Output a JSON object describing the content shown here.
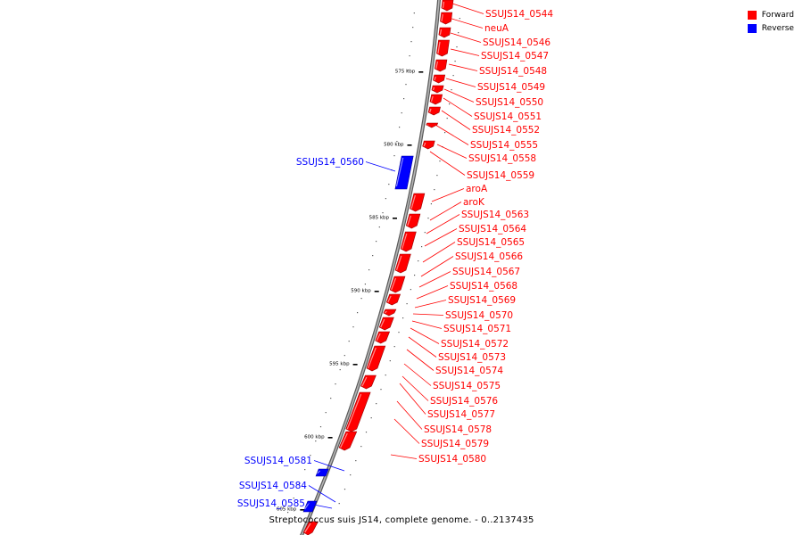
{
  "legend": [
    {
      "label": "Forward",
      "color": "#ff0000"
    },
    {
      "label": "Reverse",
      "color": "#0000ff"
    }
  ],
  "caption": "Streptococcus suis JS14, complete genome. - 0..2137435",
  "colors": {
    "forward": "#ff0000",
    "reverse": "#0000ff",
    "backbone": "#999999"
  },
  "scale": {
    "ticks": [
      {
        "label": "575 kbp",
        "kbp": 575
      },
      {
        "label": "580 kbp",
        "kbp": 580
      },
      {
        "label": "585 kbp",
        "kbp": 585
      },
      {
        "label": "590 kbp",
        "kbp": 590
      },
      {
        "label": "595 kbp",
        "kbp": 595
      },
      {
        "label": "600 kbp",
        "kbp": 600
      },
      {
        "label": "605 kbp",
        "kbp": 605
      }
    ]
  },
  "features": [
    {
      "label": "SSUJS14_0544",
      "strand": "forward"
    },
    {
      "label": "neuA",
      "strand": "forward"
    },
    {
      "label": "SSUJS14_0546",
      "strand": "forward"
    },
    {
      "label": "SSUJS14_0547",
      "strand": "forward"
    },
    {
      "label": "SSUJS14_0548",
      "strand": "forward"
    },
    {
      "label": "SSUJS14_0549",
      "strand": "forward"
    },
    {
      "label": "SSUJS14_0550",
      "strand": "forward"
    },
    {
      "label": "SSUJS14_0551",
      "strand": "forward"
    },
    {
      "label": "SSUJS14_0552",
      "strand": "forward"
    },
    {
      "label": "SSUJS14_0555",
      "strand": "forward"
    },
    {
      "label": "SSUJS14_0558",
      "strand": "forward"
    },
    {
      "label": "SSUJS14_0559",
      "strand": "forward"
    },
    {
      "label": "SSUJS14_0560",
      "strand": "reverse"
    },
    {
      "label": "aroA",
      "strand": "forward"
    },
    {
      "label": "aroK",
      "strand": "forward"
    },
    {
      "label": "SSUJS14_0563",
      "strand": "forward"
    },
    {
      "label": "SSUJS14_0564",
      "strand": "forward"
    },
    {
      "label": "SSUJS14_0565",
      "strand": "forward"
    },
    {
      "label": "SSUJS14_0566",
      "strand": "forward"
    },
    {
      "label": "SSUJS14_0567",
      "strand": "forward"
    },
    {
      "label": "SSUJS14_0568",
      "strand": "forward"
    },
    {
      "label": "SSUJS14_0569",
      "strand": "forward"
    },
    {
      "label": "SSUJS14_0570",
      "strand": "forward"
    },
    {
      "label": "SSUJS14_0571",
      "strand": "forward"
    },
    {
      "label": "SSUJS14_0572",
      "strand": "forward"
    },
    {
      "label": "SSUJS14_0573",
      "strand": "forward"
    },
    {
      "label": "SSUJS14_0574",
      "strand": "forward"
    },
    {
      "label": "SSUJS14_0575",
      "strand": "forward"
    },
    {
      "label": "SSUJS14_0576",
      "strand": "forward"
    },
    {
      "label": "SSUJS14_0577",
      "strand": "forward"
    },
    {
      "label": "SSUJS14_0578",
      "strand": "forward"
    },
    {
      "label": "SSUJS14_0579",
      "strand": "forward"
    },
    {
      "label": "SSUJS14_0580",
      "strand": "forward"
    },
    {
      "label": "SSUJS14_0581",
      "strand": "reverse"
    },
    {
      "label": "SSUJS14_0584",
      "strand": "reverse"
    },
    {
      "label": "SSUJS14_0585",
      "strand": "reverse"
    }
  ]
}
